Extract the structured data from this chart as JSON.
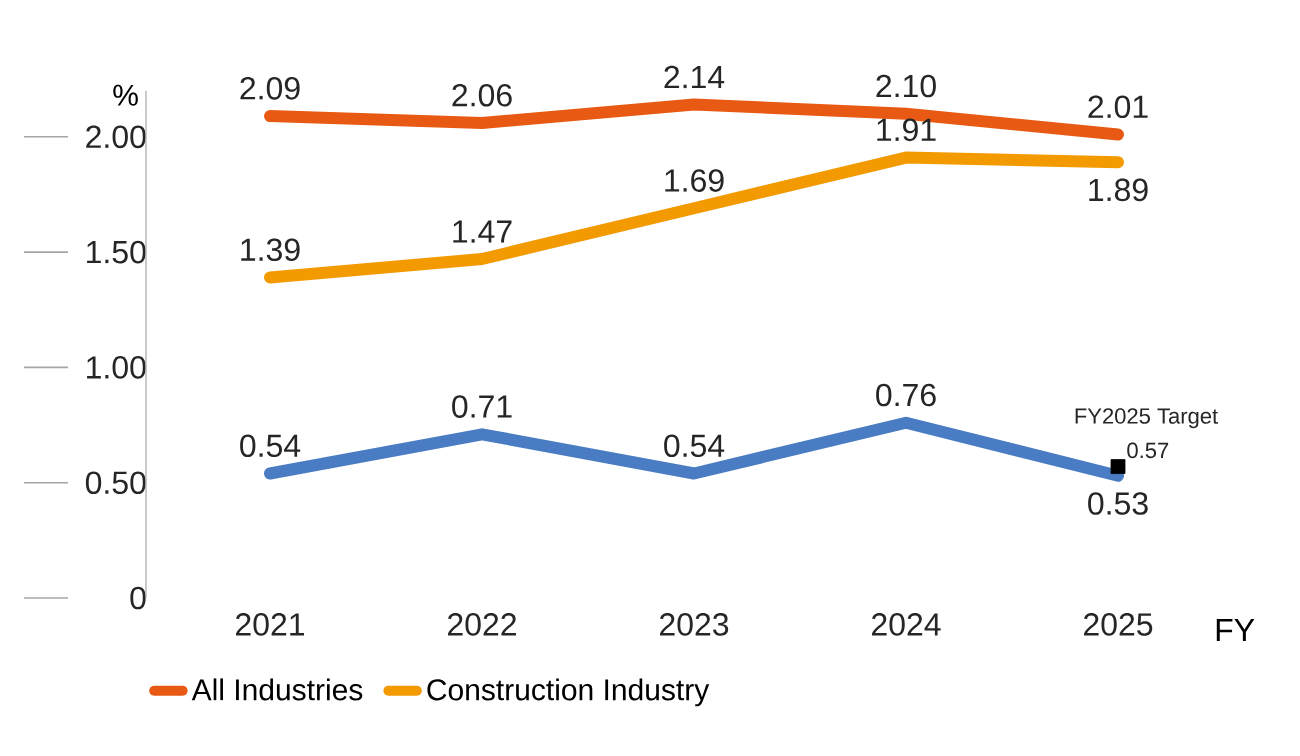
{
  "chart_data": {
    "type": "line",
    "ylabel": "%",
    "xlabel": "FY",
    "categories": [
      "2021",
      "2022",
      "2023",
      "2024",
      "2025"
    ],
    "ylim": [
      0,
      2.2
    ],
    "yticks": [
      0,
      {
        "value": 0.5,
        "label": "0.50"
      },
      {
        "value": 1,
        "label": "1.00"
      },
      {
        "value": 1.5,
        "label": "1.50"
      },
      {
        "value": 2,
        "label": "2.00"
      }
    ],
    "series": [
      {
        "name": "All Industries",
        "color": "#e85a14",
        "values": [
          2.09,
          2.06,
          2.14,
          2.1,
          2.01
        ],
        "value_labels": [
          "2.09",
          "2.06",
          "2.14",
          "2.10",
          "2.01"
        ]
      },
      {
        "name": "Construction Industry",
        "color": "#f29a00",
        "values": [
          1.39,
          1.47,
          1.69,
          1.91,
          1.89
        ]
      },
      {
        "color": "#4a7cc4",
        "values": [
          0.54,
          0.71,
          0.54,
          0.76,
          0.53
        ]
      },
      {
        "type": "scatter",
        "marker": "square",
        "color": "#000000",
        "values": [
          null,
          null,
          null,
          null,
          0.57
        ]
      }
    ],
    "annotations": [
      {
        "text": "FY2025 Target",
        "x": "2025",
        "y": 0.57
      }
    ],
    "data_labels": true,
    "legend": "bottom",
    "grid": false,
    "marker": "none",
    "line_style": "solid"
  }
}
